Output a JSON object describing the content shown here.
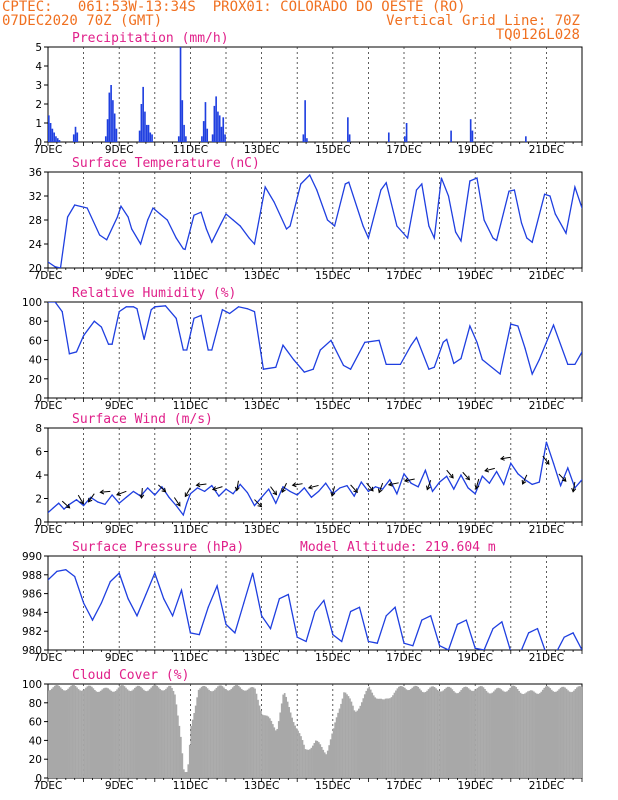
{
  "header": {
    "line1_left": "CPTEC:   061:53W-13:34S  PROX01: COLORADO DO OESTE (RO)",
    "line2_left": "07DEC2020 70Z (GMT)",
    "line2_right": "Vertical Grid Line: 70Z",
    "line3_right": "TQ0126L028"
  },
  "colors": {
    "header": "#f07020",
    "title": "#e0208a",
    "series": "#1f3fe0",
    "cloud": "#a8a8a8",
    "axis": "#000000"
  },
  "chart_data": [
    {
      "type": "bar",
      "title": "Precipitation (mm/h)",
      "ylim": [
        0,
        5
      ],
      "yticks": [
        "0",
        "1",
        "2",
        "3",
        "4",
        "5"
      ],
      "xticks": [
        "7DEC",
        "9DEC",
        "11DEC",
        "13DEC",
        "15DEC",
        "17DEC",
        "19DEC",
        "21DEC"
      ],
      "grid": "vertical dashed",
      "x_day_range": [
        7,
        22
      ],
      "bars": [
        {
          "x": 7.0,
          "y": 1.4
        },
        {
          "x": 7.05,
          "y": 1.0
        },
        {
          "x": 7.1,
          "y": 0.7
        },
        {
          "x": 7.15,
          "y": 0.5
        },
        {
          "x": 7.2,
          "y": 0.3
        },
        {
          "x": 7.25,
          "y": 0.2
        },
        {
          "x": 7.3,
          "y": 0.1
        },
        {
          "x": 7.7,
          "y": 0.4
        },
        {
          "x": 7.75,
          "y": 0.8
        },
        {
          "x": 7.8,
          "y": 0.5
        },
        {
          "x": 8.6,
          "y": 0.3
        },
        {
          "x": 8.65,
          "y": 1.2
        },
        {
          "x": 8.7,
          "y": 2.6
        },
        {
          "x": 8.75,
          "y": 3.0
        },
        {
          "x": 8.8,
          "y": 2.2
        },
        {
          "x": 8.85,
          "y": 1.5
        },
        {
          "x": 8.9,
          "y": 0.7
        },
        {
          "x": 9.55,
          "y": 0.6
        },
        {
          "x": 9.6,
          "y": 2.0
        },
        {
          "x": 9.65,
          "y": 2.9
        },
        {
          "x": 9.7,
          "y": 1.6
        },
        {
          "x": 9.75,
          "y": 0.9
        },
        {
          "x": 9.8,
          "y": 0.9
        },
        {
          "x": 9.85,
          "y": 0.5
        },
        {
          "x": 9.9,
          "y": 0.4
        },
        {
          "x": 10.65,
          "y": 0.3
        },
        {
          "x": 10.7,
          "y": 5.0
        },
        {
          "x": 10.75,
          "y": 2.2
        },
        {
          "x": 10.8,
          "y": 0.9
        },
        {
          "x": 10.85,
          "y": 0.3
        },
        {
          "x": 11.3,
          "y": 0.3
        },
        {
          "x": 11.35,
          "y": 1.1
        },
        {
          "x": 11.4,
          "y": 2.1
        },
        {
          "x": 11.45,
          "y": 0.7
        },
        {
          "x": 11.6,
          "y": 0.4
        },
        {
          "x": 11.65,
          "y": 1.9
        },
        {
          "x": 11.7,
          "y": 2.4
        },
        {
          "x": 11.75,
          "y": 1.6
        },
        {
          "x": 11.8,
          "y": 1.4
        },
        {
          "x": 11.85,
          "y": 0.8
        },
        {
          "x": 11.9,
          "y": 1.3
        },
        {
          "x": 11.95,
          "y": 0.4
        },
        {
          "x": 14.15,
          "y": 0.4
        },
        {
          "x": 14.2,
          "y": 2.2
        },
        {
          "x": 14.25,
          "y": 0.2
        },
        {
          "x": 15.4,
          "y": 1.3
        },
        {
          "x": 15.45,
          "y": 0.4
        },
        {
          "x": 16.55,
          "y": 0.5
        },
        {
          "x": 17.0,
          "y": 0.3
        },
        {
          "x": 17.05,
          "y": 1.0
        },
        {
          "x": 18.3,
          "y": 0.6
        },
        {
          "x": 18.85,
          "y": 1.2
        },
        {
          "x": 18.9,
          "y": 0.6
        },
        {
          "x": 20.4,
          "y": 0.3
        }
      ]
    },
    {
      "type": "line",
      "title": "Surface Temperature (nC)",
      "ylim": [
        20,
        36
      ],
      "yticks": [
        "20",
        "24",
        "28",
        "32",
        "36"
      ],
      "xticks": [
        "7DEC",
        "9DEC",
        "11DEC",
        "13DEC",
        "15DEC",
        "17DEC",
        "19DEC",
        "21DEC"
      ],
      "x": [
        7.0,
        7.2,
        7.35,
        7.55,
        7.75,
        8.1,
        8.45,
        8.65,
        8.95,
        9.05,
        9.25,
        9.35,
        9.6,
        9.8,
        9.95,
        10.15,
        10.35,
        10.6,
        10.8,
        10.85,
        11.1,
        11.3,
        11.45,
        11.6,
        11.85,
        12.0,
        12.2,
        12.4,
        12.65,
        12.8,
        13.1,
        13.35,
        13.7,
        13.8,
        14.1,
        14.35,
        14.55,
        14.85,
        15.05,
        15.35,
        15.45,
        15.85,
        16.0,
        16.35,
        16.5,
        16.8,
        17.1,
        17.35,
        17.5,
        17.7,
        17.85,
        18.05,
        18.25,
        18.45,
        18.6,
        18.85,
        19.05,
        19.25,
        19.5,
        19.6,
        19.95,
        20.1,
        20.3,
        20.45,
        20.6,
        20.95,
        21.1,
        21.25,
        21.55,
        21.8,
        22.0
      ],
      "y": [
        21.0,
        20.2,
        20.0,
        28.5,
        30.5,
        30.0,
        25.5,
        24.7,
        28.5,
        30.3,
        28.5,
        26.5,
        24.0,
        28.0,
        30.0,
        29.0,
        28.0,
        25.0,
        23.2,
        23.1,
        28.8,
        29.3,
        26.5,
        24.3,
        27.3,
        29.0,
        28.0,
        27.0,
        25.0,
        24.0,
        33.5,
        31.0,
        26.5,
        27.0,
        34.0,
        35.5,
        33.0,
        28.0,
        27.0,
        34.0,
        34.3,
        27.0,
        25.0,
        33.0,
        34.2,
        27.0,
        25.0,
        33.0,
        34.0,
        27.0,
        25.0,
        35.0,
        32.0,
        26.0,
        24.5,
        34.5,
        35.0,
        28.0,
        25.0,
        24.6,
        32.8,
        33.0,
        27.5,
        25.0,
        24.3,
        32.3,
        32.0,
        29.0,
        25.8,
        33.5,
        30.0
      ]
    },
    {
      "type": "line",
      "title": "Relative Humidity (%)",
      "ylim": [
        0,
        100
      ],
      "yticks": [
        "0",
        "20",
        "40",
        "60",
        "80",
        "100"
      ],
      "xticks": [
        "7DEC",
        "9DEC",
        "11DEC",
        "13DEC",
        "15DEC",
        "17DEC",
        "19DEC",
        "21DEC"
      ],
      "x": [
        7.0,
        7.2,
        7.4,
        7.6,
        7.8,
        8.0,
        8.3,
        8.5,
        8.7,
        8.8,
        9.0,
        9.2,
        9.4,
        9.5,
        9.7,
        9.9,
        10.0,
        10.3,
        10.6,
        10.8,
        10.9,
        11.1,
        11.3,
        11.5,
        11.6,
        11.9,
        12.1,
        12.35,
        12.6,
        12.8,
        13.05,
        13.4,
        13.6,
        13.9,
        14.2,
        14.45,
        14.65,
        14.95,
        15.3,
        15.5,
        15.9,
        16.3,
        16.5,
        16.9,
        17.2,
        17.35,
        17.7,
        17.85,
        18.1,
        18.2,
        18.4,
        18.6,
        18.85,
        19.05,
        19.2,
        19.7,
        20.0,
        20.2,
        20.4,
        20.6,
        20.8,
        21.2,
        21.6,
        21.8,
        22.0
      ],
      "y": [
        100,
        100,
        90,
        46,
        48,
        65,
        80,
        74,
        56,
        56,
        90,
        95,
        95,
        93,
        61,
        92,
        95,
        96,
        83,
        50,
        50,
        83,
        86,
        50,
        50,
        92,
        88,
        95,
        93,
        90,
        30,
        32,
        55,
        40,
        27,
        30,
        50,
        60,
        34,
        30,
        58,
        60,
        35,
        35,
        55,
        63,
        30,
        32,
        58,
        61,
        36,
        41,
        75,
        58,
        40,
        25,
        77,
        75,
        52,
        25,
        40,
        76,
        35,
        35,
        48
      ]
    },
    {
      "type": "line",
      "title": "Surface Wind (m/s)",
      "ylim": [
        0,
        8
      ],
      "yticks": [
        "0",
        "2",
        "4",
        "6",
        "8"
      ],
      "xticks": [
        "7DEC",
        "9DEC",
        "11DEC",
        "13DEC",
        "15DEC",
        "17DEC",
        "19DEC",
        "21DEC"
      ],
      "x": [
        7.0,
        7.15,
        7.3,
        7.45,
        7.6,
        7.8,
        8.0,
        8.2,
        8.4,
        8.6,
        8.8,
        9.0,
        9.2,
        9.4,
        9.6,
        9.8,
        10.0,
        10.2,
        10.4,
        10.6,
        10.8,
        10.9,
        11.0,
        11.2,
        11.4,
        11.6,
        11.8,
        12.0,
        12.2,
        12.4,
        12.6,
        12.8,
        13.0,
        13.2,
        13.4,
        13.6,
        13.8,
        14.0,
        14.2,
        14.4,
        14.6,
        14.8,
        15.0,
        15.2,
        15.4,
        15.6,
        15.8,
        16.0,
        16.2,
        16.4,
        16.6,
        16.8,
        17.0,
        17.2,
        17.4,
        17.6,
        17.8,
        18.0,
        18.2,
        18.4,
        18.6,
        18.8,
        19.0,
        19.2,
        19.4,
        19.6,
        19.8,
        20.0,
        20.2,
        20.4,
        20.6,
        20.8,
        21.0,
        21.2,
        21.4,
        21.6,
        21.8,
        22.0
      ],
      "y": [
        0.8,
        1.2,
        1.6,
        1.1,
        1.5,
        1.9,
        1.4,
        2.1,
        1.7,
        1.5,
        2.3,
        1.6,
        2.1,
        2.6,
        2.2,
        2.9,
        2.3,
        3.0,
        2.1,
        1.4,
        0.6,
        1.6,
        2.4,
        2.9,
        2.6,
        3.1,
        2.2,
        2.8,
        2.4,
        3.2,
        2.5,
        1.4,
        2.1,
        2.8,
        1.6,
        3.0,
        2.6,
        2.3,
        2.9,
        2.1,
        2.6,
        3.3,
        2.4,
        2.9,
        3.1,
        2.2,
        3.4,
        2.6,
        3.0,
        2.8,
        3.6,
        2.4,
        4.1,
        3.3,
        3.0,
        4.4,
        2.6,
        3.4,
        3.9,
        2.8,
        4.0,
        2.9,
        2.4,
        3.9,
        3.3,
        4.3,
        3.2,
        5.0,
        4.1,
        3.6,
        3.2,
        3.4,
        6.8,
        5.0,
        3.1,
        4.6,
        2.9,
        3.6
      ]
    },
    {
      "type": "line",
      "title": "Surface Pressure (hPa)",
      "annotation": "Model Altitude: 219.604  m",
      "ylim": [
        979,
        990
      ],
      "yticks": [
        "980",
        "982",
        "984",
        "986",
        "988",
        "990"
      ],
      "xticks": [
        "7DEC",
        "9DEC",
        "11DEC",
        "13DEC",
        "15DEC",
        "17DEC",
        "19DEC",
        "21DEC"
      ],
      "x": [
        7.0,
        7.25,
        7.5,
        7.75,
        8.0,
        8.25,
        8.5,
        8.75,
        9.0,
        9.25,
        9.5,
        9.75,
        10.0,
        10.25,
        10.5,
        10.75,
        11.0,
        11.25,
        11.5,
        11.75,
        12.0,
        12.25,
        12.5,
        12.75,
        13.0,
        13.25,
        13.5,
        13.75,
        14.0,
        14.25,
        14.5,
        14.75,
        15.0,
        15.25,
        15.5,
        15.75,
        16.0,
        16.25,
        16.5,
        16.75,
        17.0,
        17.25,
        17.5,
        17.75,
        18.0,
        18.25,
        18.5,
        18.75,
        19.0,
        19.25,
        19.5,
        19.75,
        20.0,
        20.25,
        20.5,
        20.75,
        21.0,
        21.25,
        21.5,
        21.75,
        22.0
      ],
      "y": [
        987.2,
        988.2,
        988.4,
        987.6,
        984.5,
        982.5,
        984.5,
        987.0,
        988.0,
        985.0,
        983.0,
        985.5,
        988.0,
        985.0,
        983.0,
        986.0,
        981.0,
        980.8,
        984.0,
        986.5,
        982.0,
        981.0,
        984.5,
        988.0,
        983.0,
        981.5,
        985.0,
        985.5,
        980.5,
        980.0,
        983.5,
        984.8,
        980.8,
        980.0,
        983.5,
        984.0,
        980.0,
        979.8,
        983.0,
        984.0,
        979.8,
        979.5,
        982.5,
        983.0,
        979.5,
        979.0,
        982.0,
        982.5,
        979.2,
        979.0,
        981.5,
        982.3,
        978.8,
        978.5,
        981.0,
        981.5,
        978.5,
        978.5,
        980.5,
        981.0,
        979.0
      ]
    },
    {
      "type": "bar",
      "title": "Cloud Cover (%)",
      "ylim": [
        0,
        100
      ],
      "yticks": [
        "0",
        "20",
        "40",
        "60",
        "80",
        "100"
      ],
      "xticks": [
        "7DEC",
        "9DEC",
        "11DEC",
        "13DEC",
        "15DEC",
        "17DEC",
        "19DEC",
        "21DEC"
      ],
      "x_day_range": [
        7,
        22
      ],
      "anchors_x": [
        7.0,
        7.8,
        8.3,
        8.6,
        9.0,
        9.6,
        10.0,
        10.4,
        10.55,
        10.7,
        10.8,
        10.9,
        11.0,
        11.2,
        11.5,
        12.0,
        12.5,
        12.8,
        13.0,
        13.4,
        13.6,
        13.9,
        14.2,
        14.5,
        14.8,
        15.0,
        15.3,
        15.6,
        16.0,
        16.4,
        16.7,
        17.0,
        17.5,
        18.0,
        18.5,
        19.0,
        19.5,
        20.0,
        20.5,
        21.0,
        21.5,
        22.0
      ],
      "anchors_y": [
        96,
        96,
        95,
        93,
        96,
        95,
        96,
        96,
        88,
        50,
        5,
        3,
        55,
        95,
        95,
        96,
        96,
        93,
        70,
        52,
        90,
        60,
        30,
        38,
        28,
        50,
        95,
        70,
        95,
        80,
        92,
        97,
        94,
        95,
        93,
        96,
        92,
        96,
        90,
        95,
        94,
        95
      ]
    }
  ]
}
